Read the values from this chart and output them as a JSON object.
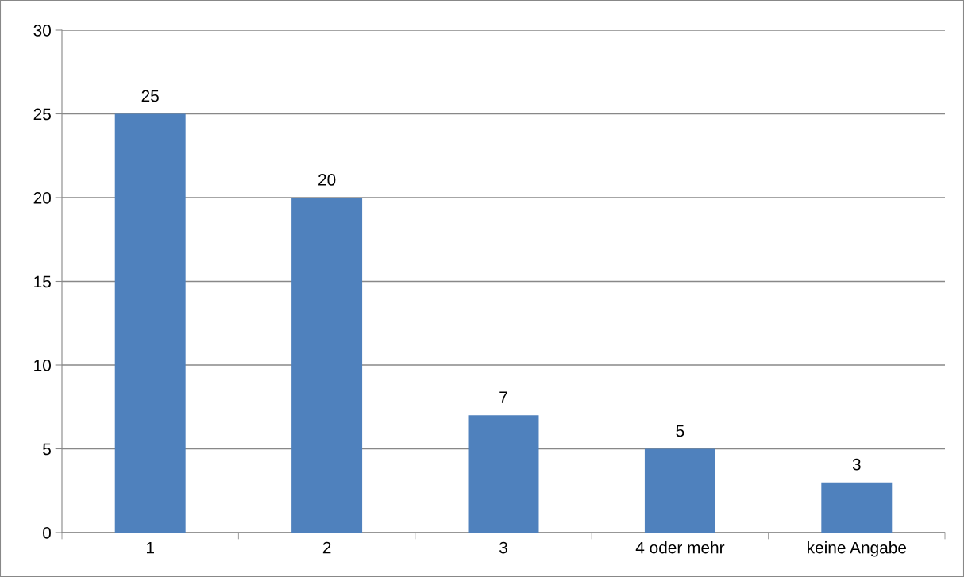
{
  "chart_data": {
    "type": "bar",
    "categories": [
      "1",
      "2",
      "3",
      "4 oder mehr",
      "keine Angabe"
    ],
    "values": [
      25,
      20,
      7,
      5,
      3
    ],
    "color": "#4f81bd",
    "ylim": [
      0,
      30
    ],
    "yticks": [
      0,
      5,
      10,
      15,
      20,
      25,
      30
    ],
    "grid": "y",
    "data_labels": true
  }
}
